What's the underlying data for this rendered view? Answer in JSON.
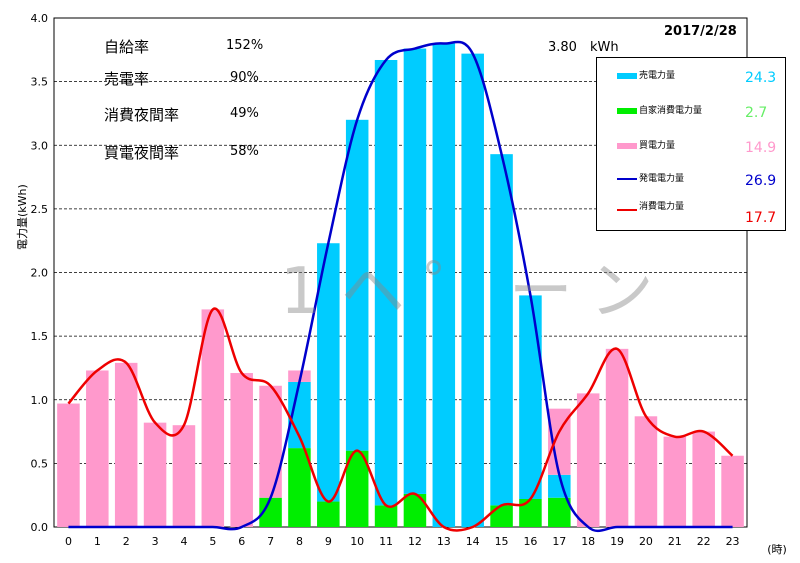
{
  "date": "2017/2/28",
  "kwh_readout": "3.80　kWh",
  "watermark": "1ヘ゜ーン",
  "stats": [
    {
      "label": "自給率",
      "value": "152%"
    },
    {
      "label": "売電率",
      "value": "90%"
    },
    {
      "label": "消費夜間率",
      "value": "49%"
    },
    {
      "label": "買電夜間率",
      "value": "58%"
    }
  ],
  "legend": [
    {
      "name": "売電力量",
      "total": "24.3",
      "color": "#00ccff",
      "kind": "bar"
    },
    {
      "name": "自家消費電力量",
      "total": "2.7",
      "color": "#00ee00",
      "kind": "bar"
    },
    {
      "name": "買電力量",
      "total": "14.9",
      "color": "#ff99cc",
      "kind": "bar"
    },
    {
      "name": "発電電力量",
      "total": "26.9",
      "color": "#0000cc",
      "kind": "line"
    },
    {
      "name": "消費電力量",
      "total": "17.7",
      "color": "#ee0000",
      "kind": "line"
    }
  ],
  "chart_data": {
    "type": "bar",
    "ylabel": "電力量(kWh)",
    "xunit": "(時)",
    "ylim": [
      0,
      4.0
    ],
    "yticks": [
      "0.0",
      "0.5",
      "1.0",
      "1.5",
      "2.0",
      "2.5",
      "3.0",
      "3.5",
      "4.0"
    ],
    "categories": [
      "0",
      "1",
      "2",
      "3",
      "4",
      "5",
      "6",
      "7",
      "8",
      "9",
      "10",
      "11",
      "12",
      "13",
      "14",
      "15",
      "16",
      "17",
      "18",
      "19",
      "20",
      "21",
      "22",
      "23"
    ],
    "grid": true,
    "legend_position": "top-right",
    "series": [
      {
        "name": "売電力量",
        "kind": "bar",
        "color": "#00ccff",
        "values": [
          0,
          0,
          0,
          0,
          0,
          0,
          0,
          0,
          0.52,
          2.03,
          2.6,
          3.5,
          3.5,
          3.8,
          3.72,
          2.76,
          1.6,
          0.18,
          0,
          0,
          0,
          0,
          0,
          0
        ]
      },
      {
        "name": "自家消費電力量",
        "kind": "bar",
        "color": "#00ee00",
        "values": [
          0,
          0,
          0,
          0,
          0,
          0,
          0,
          0.23,
          0.62,
          0.2,
          0.6,
          0.17,
          0.26,
          0,
          0,
          0.17,
          0.22,
          0.23,
          0,
          0,
          0,
          0,
          0,
          0
        ]
      },
      {
        "name": "買電力量",
        "kind": "bar",
        "color": "#ff99cc",
        "values": [
          0.97,
          1.23,
          1.29,
          0.82,
          0.8,
          1.71,
          1.21,
          0.88,
          0.09,
          0,
          0,
          0,
          0,
          0,
          0,
          0,
          0,
          0.52,
          1.05,
          1.4,
          0.87,
          0.71,
          0.75,
          0.56
        ]
      },
      {
        "name": "発電電力量",
        "kind": "line",
        "color": "#0000cc",
        "values": [
          0,
          0,
          0,
          0,
          0,
          0,
          0,
          0.23,
          1.14,
          2.23,
          3.2,
          3.67,
          3.76,
          3.8,
          3.72,
          2.93,
          1.82,
          0.41,
          0,
          0,
          0,
          0,
          0,
          0
        ]
      },
      {
        "name": "消費電力量",
        "kind": "line",
        "color": "#ee0000",
        "values": [
          0.97,
          1.23,
          1.29,
          0.82,
          0.8,
          1.71,
          1.21,
          1.11,
          0.71,
          0.2,
          0.6,
          0.17,
          0.26,
          0,
          0,
          0.17,
          0.22,
          0.75,
          1.05,
          1.4,
          0.87,
          0.71,
          0.75,
          0.56
        ]
      }
    ]
  }
}
